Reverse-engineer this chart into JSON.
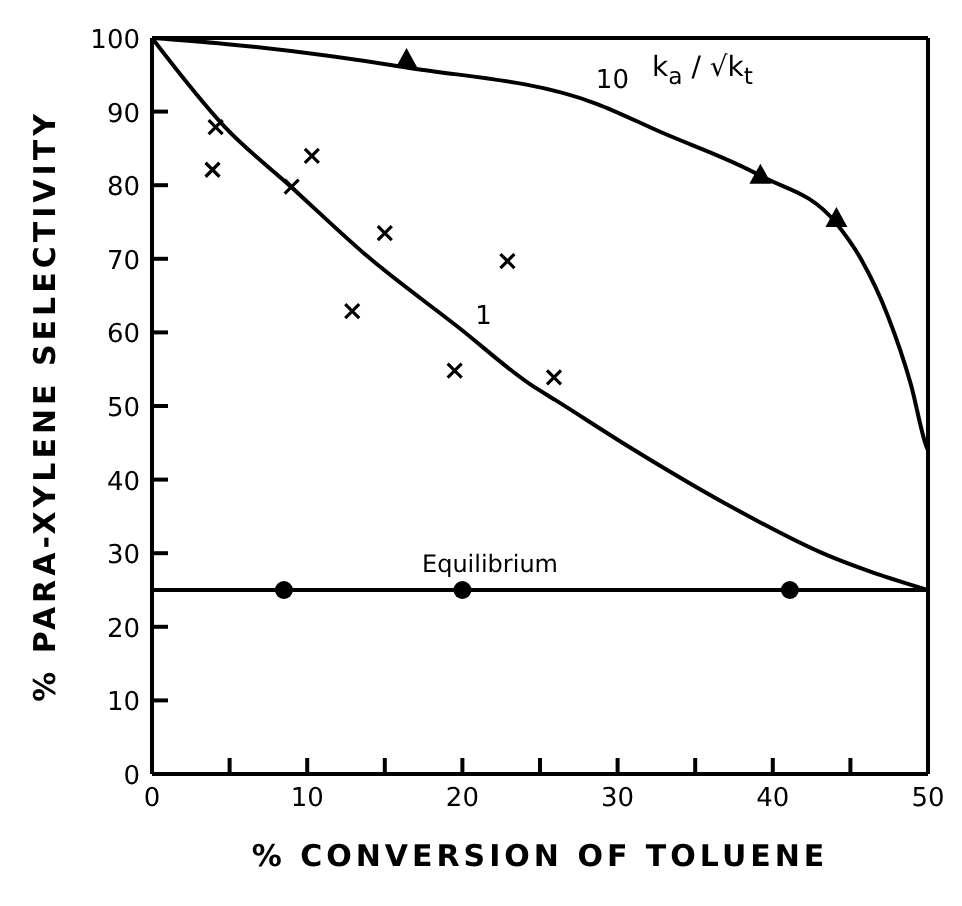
{
  "chart_data": {
    "type": "line",
    "xlabel": "% CONVERSION OF TOLUENE",
    "ylabel": "% PARA-XYLENE SELECTIVITY",
    "annotations": [
      "k$_{a}$ / √k$_{t}$"
    ],
    "xlim": [
      0,
      50
    ],
    "xticks": [
      0,
      {
        "value": 5,
        "label": null
      },
      10,
      {
        "value": 15,
        "label": null
      },
      20,
      {
        "value": 25,
        "label": null
      },
      30,
      {
        "value": 35,
        "label": null
      },
      40,
      {
        "value": 45,
        "label": null
      },
      50
    ],
    "ylim": [
      0,
      100
    ],
    "yticks": [
      0,
      10,
      20,
      30,
      40,
      50,
      60,
      70,
      80,
      90,
      100
    ],
    "grid": false,
    "legend": false,
    "ref_lines": [
      {
        "axis": "y",
        "value": 25,
        "label": "Equilibrium",
        "color": "#000000"
      }
    ],
    "series": [
      {
        "name": "10",
        "type": "line",
        "color": "#000000",
        "marker": "none",
        "x": [
          0,
          4.7,
          16.4,
          28.6,
          32.7,
          39.2,
          44.1,
          45.7,
          47.4,
          48.9,
          49.9,
          50
        ],
        "values": [
          100,
          99.2,
          96,
          91.1,
          87.3,
          81.3,
          74.8,
          69.9,
          62.3,
          52.9,
          44.5,
          44
        ]
      },
      {
        "name": "1",
        "type": "line",
        "color": "#000000",
        "marker": "none",
        "x": [
          0,
          4.7,
          9,
          13.9,
          19.8,
          24.4,
          26,
          30.7,
          36.9,
          43.2,
          50
        ],
        "values": [
          100,
          87.9,
          79.7,
          70.3,
          60.6,
          52.9,
          50.8,
          44.5,
          36.8,
          30,
          25
        ]
      },
      {
        "type": "scatter",
        "color": "#000000",
        "marker": "triangle",
        "x": [
          16.4,
          39.2,
          44.1
        ],
        "values": [
          97,
          81.3,
          75.4
        ]
      },
      {
        "type": "scatter",
        "color": "#000000",
        "marker": "cross",
        "x": [
          4.1,
          3.9,
          9,
          10.3,
          15,
          12.9,
          22.9,
          19.5,
          25.9
        ],
        "values": [
          87.9,
          82.1,
          79.8,
          84,
          73.5,
          62.9,
          69.7,
          54.8,
          53.9
        ]
      },
      {
        "type": "scatter",
        "color": "#000000",
        "marker": "circle",
        "x": [
          8.5,
          20,
          41.1
        ],
        "values": [
          25,
          25,
          25
        ]
      }
    ]
  }
}
